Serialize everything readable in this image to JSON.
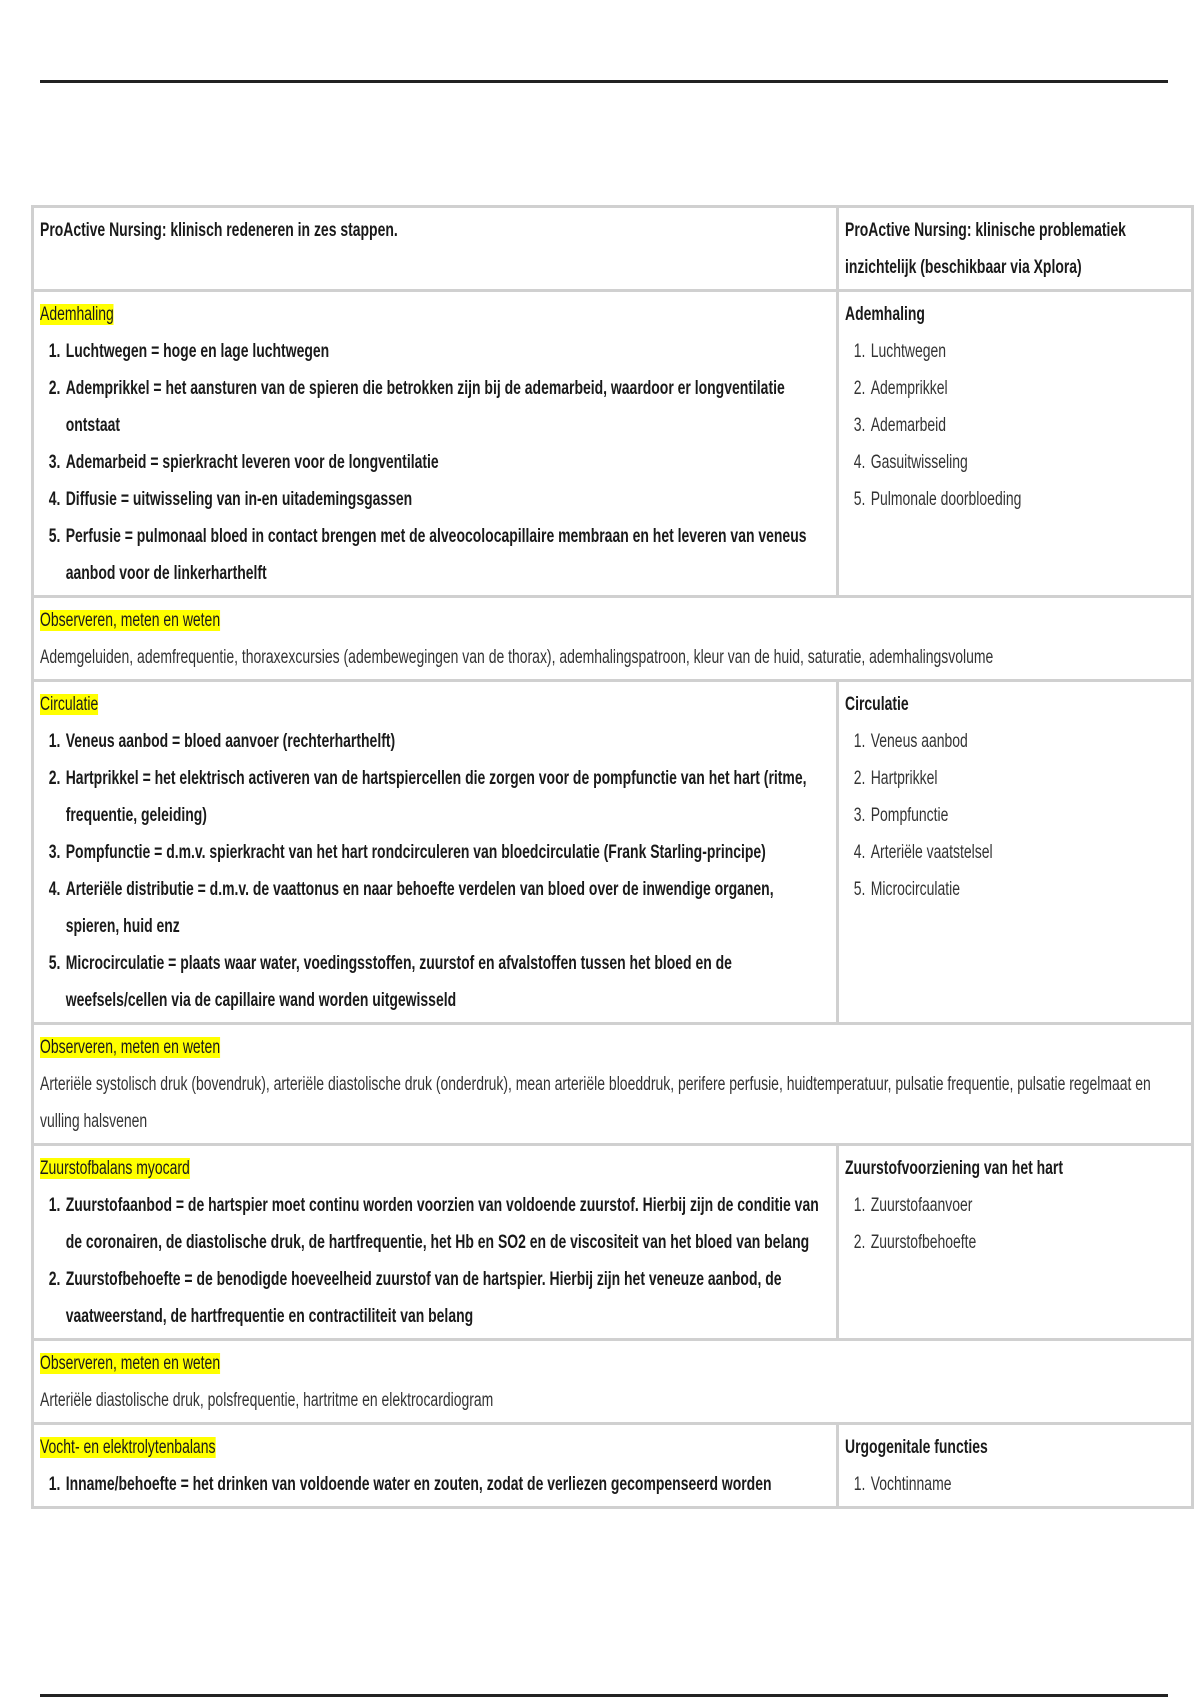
{
  "header": {
    "left": "ProActive Nursing: klinisch redeneren in zes stappen.",
    "right": "ProActive Nursing: klinische problematiek inzichtelijk (beschikbaar via Xplora)"
  },
  "highlight_color": "#ffff00",
  "sections": [
    {
      "title": "Ademhaling",
      "items": [
        "Luchtwegen = hoge en lage luchtwegen",
        "Ademprikkel = het aansturen van de spieren die betrokken zijn bij de ademarbeid, waardoor er longventilatie ontstaat",
        "Ademarbeid = spierkracht leveren voor de longventilatie",
        "Diffusie = uitwisseling van in-en uitademingsgassen",
        "Perfusie = pulmonaal bloed in contact brengen met de alveocolocapillaire membraan en het leveren van veneus aanbod voor de linkerharthelft"
      ],
      "right_title": "Ademhaling",
      "right_items": [
        "Luchtwegen",
        "Ademprikkel",
        "Ademarbeid",
        "Gasuitwisseling",
        "Pulmonale doorbloeding"
      ],
      "obs_title": "Observeren, meten en weten",
      "obs_text": "Ademgeluiden, ademfrequentie, thoraxexcursies (adembewegingen van de thorax), ademhalingspatroon, kleur van de huid, saturatie, ademhalingsvolume"
    },
    {
      "title": "Circulatie",
      "items": [
        "Veneus aanbod = bloed aanvoer (rechterharthelft)",
        "Hartprikkel = het elektrisch activeren van de hartspiercellen die zorgen voor de pompfunctie van het hart (ritme, frequentie, geleiding)",
        "Pompfunctie = d.m.v. spierkracht van het hart rondcirculeren van bloedcirculatie (Frank Starling-principe)",
        "Arteriële distributie = d.m.v. de vaattonus en naar behoefte verdelen van bloed over de inwendige organen, spieren, huid enz",
        "Microcirculatie = plaats waar water, voedingsstoffen, zuurstof en afvalstoffen tussen het bloed en de weefsels/cellen via de capillaire wand worden uitgewisseld"
      ],
      "right_title": "Circulatie",
      "right_items": [
        "Veneus aanbod",
        "Hartprikkel",
        "Pompfunctie",
        "Arteriële vaatstelsel",
        "Microcirculatie"
      ],
      "obs_title": "Observeren, meten en weten",
      "obs_text": "Arteriële systolisch druk (bovendruk), arteriële diastolische druk (onderdruk), mean arteriële bloeddruk, perifere perfusie, huidtemperatuur, pulsatie frequentie, pulsatie regelmaat en vulling halsvenen"
    },
    {
      "title": "Zuurstofbalans myocard",
      "items": [
        "Zuurstofaanbod = de hartspier moet continu worden voorzien van voldoende zuurstof. Hierbij zijn de conditie van de coronairen, de diastolische druk, de hartfrequentie, het Hb en SO2 en de viscositeit van het bloed van belang",
        "Zuurstofbehoefte = de benodigde hoeveelheid zuurstof van de hartspier. Hierbij zijn het veneuze aanbod, de vaatweerstand, de hartfrequentie en contractiliteit van belang"
      ],
      "right_title": "Zuurstofvoorziening van het hart",
      "right_items": [
        "Zuurstofaanvoer",
        "Zuurstofbehoefte"
      ],
      "obs_title": "Observeren, meten en weten",
      "obs_text": "Arteriële diastolische druk, polsfrequentie, hartritme en elektrocardiogram"
    },
    {
      "title": "Vocht- en elektrolytenbalans",
      "items": [
        "Inname/behoefte = het drinken van voldoende water en zouten, zodat de verliezen gecompenseerd worden"
      ],
      "right_title": "Urgogenitale functies",
      "right_items": [
        "Vochtinname"
      ]
    }
  ]
}
